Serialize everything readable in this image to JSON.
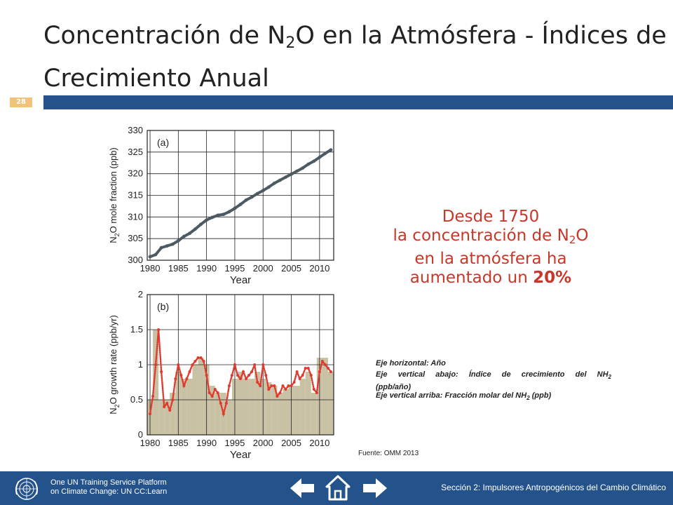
{
  "title": {
    "part1": "Concentración de N",
    "sub": "2",
    "part2": "O en la Atmósfera - Índices de Crecimiento Anual"
  },
  "slide_number": "28",
  "highlight": {
    "line1": "Desde 1750",
    "line2a": "la concentración de N",
    "line2sub": "2",
    "line2b": "O",
    "line3": "en la atmósfera ha",
    "line4a": "aumentado un ",
    "line4b": "20%"
  },
  "notes": {
    "l1": "Eje horizontal: Año",
    "l2": "Eje vertical abajo: Índice de crecimiento del NH",
    "l2sub": "2",
    "l3": "(ppb/año)",
    "l4": "Eje vertical arriba: Fracción molar del NH",
    "l4sub": "2",
    "l4end": " (ppb)"
  },
  "source": "Fuente: OMM 2013",
  "footer": {
    "platform_l1": "One UN Training Service Platform",
    "platform_l2": "on Climate Change: UN CC:Learn",
    "section": "Sección 2: Impulsores Antropogénicos del Cambio Climático"
  },
  "icons": {
    "logo": "un-emblem-icon",
    "prev": "arrow-left-icon",
    "home": "home-icon",
    "next": "arrow-right-icon"
  },
  "colors": {
    "accent_band": "#24538c",
    "highlight": "#c7372a",
    "slide_num": "#f0c27a",
    "bars": "#c8c1a4",
    "line_top": "#4b5a63",
    "line_bottom": "#e03a2f"
  },
  "chart_data": [
    {
      "type": "line",
      "panel_label": "(a)",
      "xlabel": "Year",
      "ylabel_a": "N",
      "ylabel_sub": "2",
      "ylabel_b": "O mole fraction (ppb)",
      "xlim": [
        1979.5,
        2012.5
      ],
      "ylim": [
        300,
        330
      ],
      "x_ticks": [
        1980,
        1985,
        1990,
        1995,
        2000,
        2005,
        2010
      ],
      "y_ticks": [
        300,
        305,
        310,
        315,
        320,
        325,
        330
      ],
      "grid": true,
      "x": [
        1980,
        1981,
        1982,
        1983,
        1984,
        1985,
        1986,
        1987,
        1988,
        1989,
        1990,
        1991,
        1992,
        1993,
        1994,
        1995,
        1996,
        1997,
        1998,
        1999,
        2000,
        2001,
        2002,
        2003,
        2004,
        2005,
        2006,
        2007,
        2008,
        2009,
        2010,
        2011,
        2012
      ],
      "values": [
        300.8,
        301.3,
        302.9,
        303.3,
        303.7,
        304.5,
        305.5,
        306.2,
        307.2,
        308.3,
        309.3,
        309.9,
        310.4,
        310.6,
        311.2,
        312.0,
        312.9,
        313.9,
        314.6,
        315.4,
        316.1,
        316.9,
        317.8,
        318.5,
        319.2,
        319.9,
        320.6,
        321.3,
        322.2,
        322.9,
        323.8,
        324.7,
        325.5
      ]
    },
    {
      "type": "bar",
      "panel_label": "(b)",
      "xlabel": "Year",
      "ylabel_a": "N",
      "ylabel_sub": "2",
      "ylabel_b": "O growth rate (ppb/yr)",
      "xlim": [
        1979.5,
        2012.5
      ],
      "ylim": [
        0,
        2
      ],
      "x_ticks": [
        1980,
        1985,
        1990,
        1995,
        2000,
        2005,
        2010
      ],
      "y_ticks": [
        0,
        0.5,
        1,
        1.5,
        2
      ],
      "grid": true,
      "categories": [
        1980,
        1981,
        1982,
        1983,
        1984,
        1985,
        1986,
        1987,
        1988,
        1989,
        1990,
        1991,
        1992,
        1993,
        1994,
        1995,
        1996,
        1997,
        1998,
        1999,
        2000,
        2001,
        2002,
        2003,
        2004,
        2005,
        2006,
        2007,
        2008,
        2009,
        2010,
        2011,
        2012
      ],
      "values": [
        0.5,
        1.5,
        0.5,
        0.5,
        0.6,
        0.9,
        0.8,
        0.8,
        1.0,
        1.1,
        1.0,
        0.7,
        0.6,
        0.6,
        0.5,
        0.8,
        0.9,
        0.8,
        0.8,
        0.9,
        0.8,
        0.75,
        0.7,
        0.6,
        0.65,
        0.7,
        0.7,
        0.8,
        0.9,
        0.6,
        1.1,
        1.1,
        0.9
      ],
      "series": [
        {
          "x": [
            1980,
            1980.5,
            1981,
            1981.5,
            1982,
            1982.5,
            1983,
            1983.5,
            1984,
            1984.5,
            1985,
            1985.5,
            1986,
            1986.5,
            1987,
            1987.5,
            1988,
            1988.5,
            1989,
            1989.5,
            1990,
            1990.5,
            1991,
            1991.5,
            1992,
            1992.5,
            1993,
            1993.5,
            1994,
            1994.5,
            1995,
            1995.5,
            1996,
            1996.5,
            1997,
            1997.5,
            1998,
            1998.5,
            1999,
            1999.5,
            2000,
            2000.5,
            2001,
            2001.5,
            2002,
            2002.5,
            2003,
            2003.5,
            2004,
            2004.5,
            2005,
            2005.5,
            2006,
            2006.5,
            2007,
            2007.5,
            2008,
            2008.5,
            2009,
            2009.5,
            2010,
            2010.5,
            2011,
            2011.5,
            2012
          ],
          "values": [
            0.3,
            0.55,
            1.0,
            1.5,
            0.9,
            0.4,
            0.45,
            0.35,
            0.5,
            0.8,
            1.0,
            0.85,
            0.7,
            0.8,
            0.9,
            1.0,
            1.05,
            1.1,
            1.1,
            1.05,
            0.85,
            0.6,
            0.55,
            0.65,
            0.6,
            0.45,
            0.3,
            0.45,
            0.7,
            0.85,
            1.0,
            0.85,
            0.8,
            0.9,
            0.8,
            0.85,
            0.9,
            1.0,
            0.75,
            0.7,
            1.0,
            0.85,
            0.65,
            0.7,
            0.7,
            0.55,
            0.6,
            0.7,
            0.65,
            0.7,
            0.7,
            0.75,
            0.9,
            0.8,
            0.85,
            0.95,
            0.95,
            0.85,
            0.65,
            0.6,
            0.9,
            1.05,
            1.0,
            0.95,
            0.9
          ]
        }
      ]
    }
  ]
}
